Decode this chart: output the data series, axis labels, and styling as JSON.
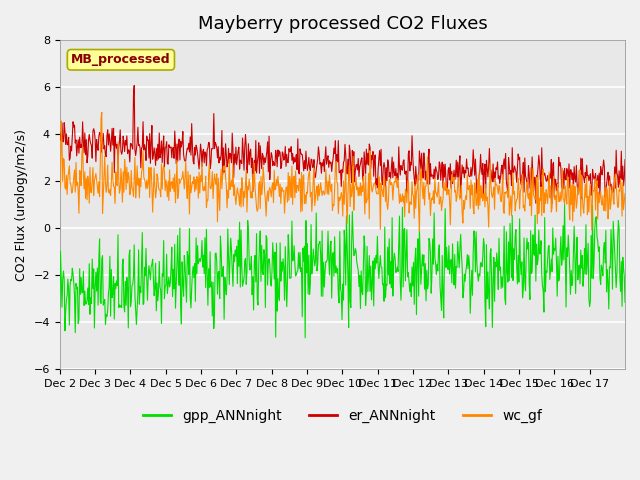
{
  "title": "Mayberry processed CO2 Fluxes",
  "ylabel": "CO2 Flux (urology/m2/s)",
  "ylim": [
    -6,
    8
  ],
  "yticks": [
    -6,
    -4,
    -2,
    0,
    2,
    4,
    6,
    8
  ],
  "n_days": 16,
  "n_per_day": 48,
  "fig_bg_color": "#f0f0f0",
  "plot_bg_color": "#e8e8e8",
  "grid_color": "#ffffff",
  "line_colors": {
    "gpp": "#00dd00",
    "er": "#cc0000",
    "wc": "#ff8800"
  },
  "legend_labels": [
    "gpp_ANNnight",
    "er_ANNnight",
    "wc_gf"
  ],
  "inset_label": "MB_processed",
  "inset_label_color": "#880000",
  "inset_bg_color": "#ffff99",
  "title_fontsize": 13,
  "label_fontsize": 9,
  "tick_fontsize": 8,
  "xtick_labels": [
    "Dec 2",
    "Dec 3",
    "Dec 4",
    "Dec 5",
    "Dec 6",
    "Dec 7",
    "Dec 8",
    "Dec 9",
    "Dec 10",
    "Dec 11",
    "Dec 12",
    "Dec 13",
    "Dec 14",
    "Dec 15",
    "Dec 16",
    "Dec 17"
  ],
  "linewidth": 0.8,
  "seed": 42
}
